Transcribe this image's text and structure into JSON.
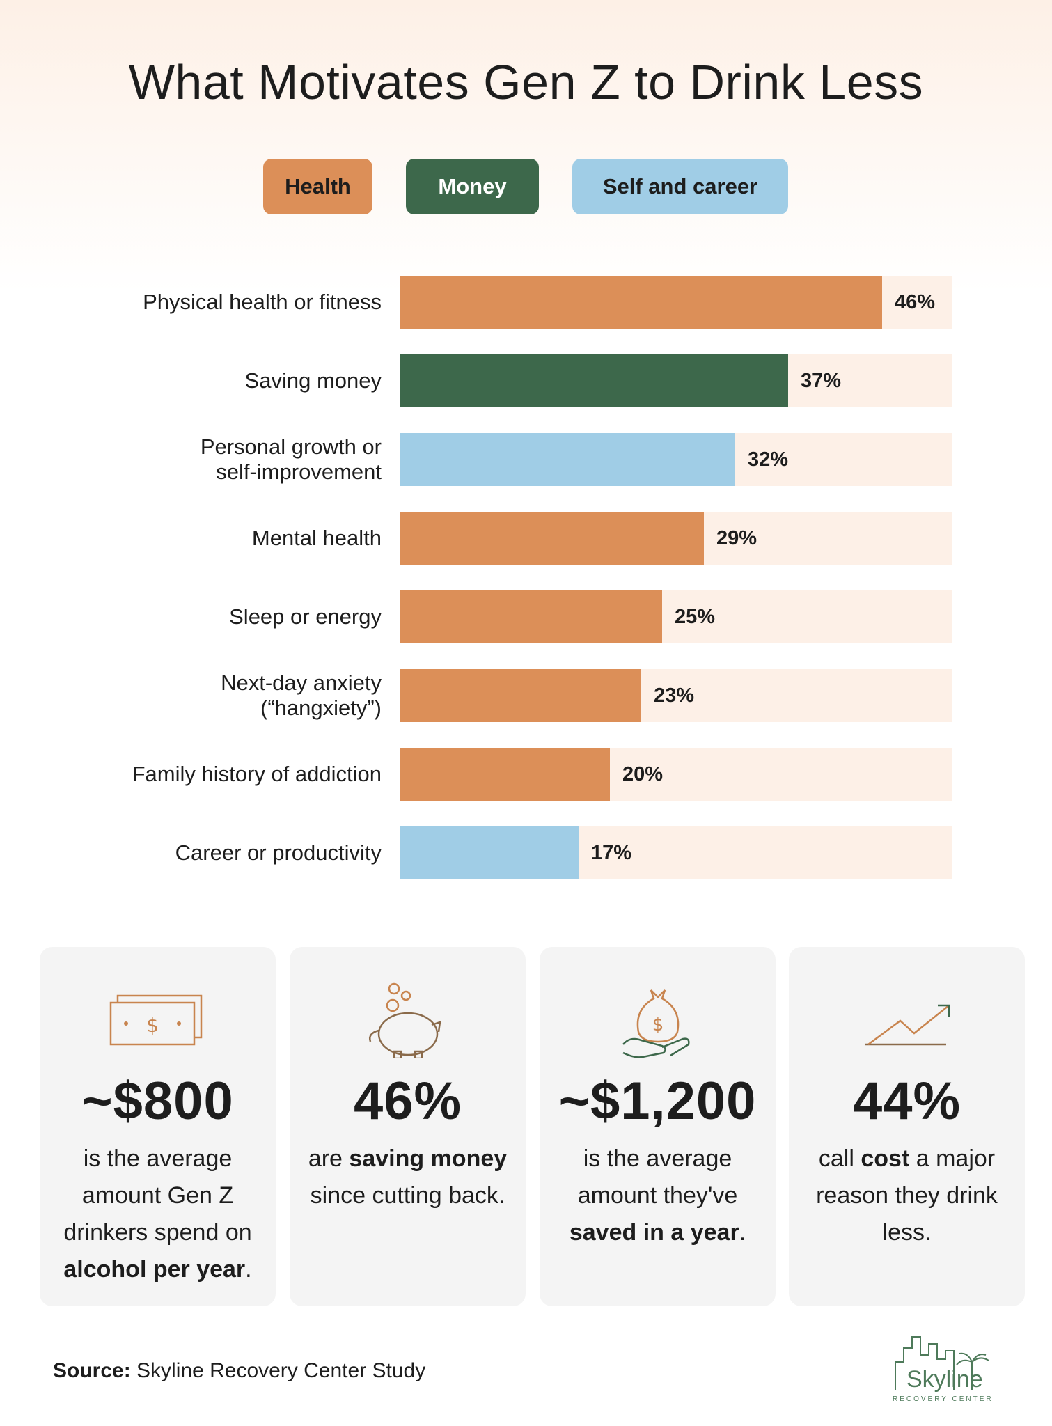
{
  "title": "What Motivates Gen Z to Drink Less",
  "legend": [
    {
      "label": "Health",
      "color": "#dc8f58"
    },
    {
      "label": "Money",
      "color": "#3d684b"
    },
    {
      "label": "Self and career",
      "color": "#a0cde6"
    }
  ],
  "chart_data": {
    "type": "bar",
    "orientation": "horizontal",
    "title": "What Motivates Gen Z to Drink Less",
    "xlim": [
      0,
      100
    ],
    "categories": [
      "Physical health or fitness",
      "Saving money",
      "Personal growth or\nself-improvement",
      "Mental health",
      "Sleep or energy",
      "Next-day anxiety\n(“hangxiety”)",
      "Family history of addiction",
      "Career or productivity"
    ],
    "values": [
      46,
      37,
      32,
      29,
      25,
      23,
      20,
      17
    ],
    "value_labels": [
      "46%",
      "37%",
      "32%",
      "29%",
      "25%",
      "23%",
      "20%",
      "17%"
    ],
    "groups": [
      "Health",
      "Money",
      "Self and career",
      "Health",
      "Health",
      "Health",
      "Health",
      "Self and career"
    ],
    "legend": [
      "Health",
      "Money",
      "Self and career"
    ],
    "grid": false
  },
  "stats": [
    {
      "icon": "cash-bill-icon",
      "value": "~$800",
      "desc_pre": "is the average amount Gen Z drinkers spend on ",
      "desc_bold": "alcohol per year",
      "desc_post": "."
    },
    {
      "icon": "piggy-bank-icon",
      "value": "46%",
      "desc_pre": "are ",
      "desc_bold": "saving money",
      "desc_post": " since cutting back."
    },
    {
      "icon": "money-bag-hand-icon",
      "value": "~$1,200",
      "desc_pre": "is the average amount they've ",
      "desc_bold": "saved in a year",
      "desc_post": "."
    },
    {
      "icon": "trend-up-arrow-icon",
      "value": "44%",
      "desc_pre": "call ",
      "desc_bold": "cost",
      "desc_post": " a major reason they drink less."
    }
  ],
  "source": {
    "label": "Source:",
    "text": "Skyline Recovery Center Study"
  },
  "logo": {
    "name": "Skyline",
    "sub": "RECOVERY CENTER"
  }
}
